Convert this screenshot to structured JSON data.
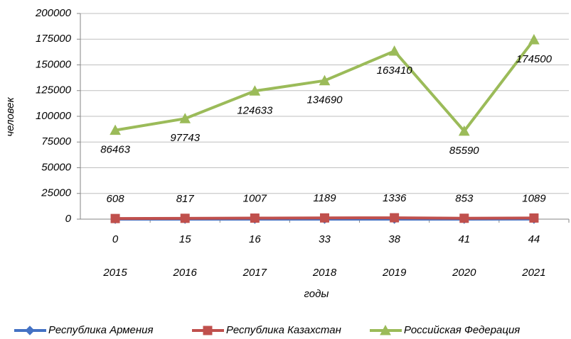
{
  "chart_data": {
    "type": "line",
    "x_label": "годы",
    "y_label": "человек",
    "categories": [
      "2015",
      "2016",
      "2017",
      "2018",
      "2019",
      "2020",
      "2021"
    ],
    "series": [
      {
        "name": "Республика Армения",
        "color": "#4472c4",
        "marker": "diamond",
        "values": [
          0,
          15,
          16,
          33,
          38,
          41,
          44
        ]
      },
      {
        "name": "Республика Казахстан",
        "color": "#c0504d",
        "marker": "square",
        "values": [
          608,
          817,
          1007,
          1189,
          1336,
          853,
          1089
        ]
      },
      {
        "name": "Российская Федерация",
        "color": "#9bbb59",
        "marker": "triangle",
        "values": [
          86463,
          97743,
          124633,
          134690,
          163410,
          85590,
          174500
        ]
      }
    ],
    "ylim": [
      0,
      200000
    ],
    "yticks": [
      0,
      25000,
      50000,
      75000,
      100000,
      125000,
      150000,
      175000,
      200000
    ],
    "grid": true,
    "legend": "bottom"
  }
}
